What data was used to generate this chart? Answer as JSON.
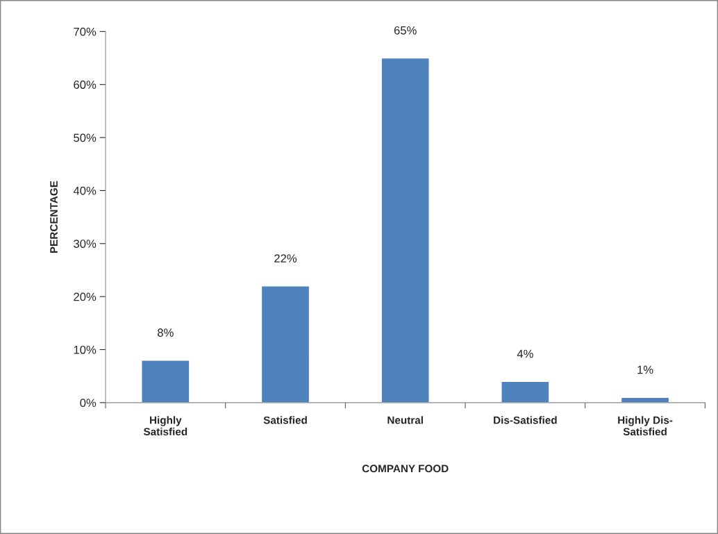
{
  "chart_data": {
    "type": "bar",
    "xlabel": "COMPANY FOOD",
    "ylabel": "PERCENTAGE",
    "categories": [
      "Highly\nSatisfied",
      "Satisfied",
      "Neutral",
      "Dis-Satisfied",
      "Highly Dis-\nSatisfied"
    ],
    "values": [
      8,
      22,
      65,
      4,
      1
    ],
    "value_labels": [
      "8%",
      "22%",
      "65%",
      "4%",
      "1%"
    ],
    "color": "#4f81bd",
    "ylim": [
      0,
      70
    ],
    "yticks": [
      {
        "value": 0,
        "label": "0%"
      },
      {
        "value": 10,
        "label": "10%"
      },
      {
        "value": 20,
        "label": "20%"
      },
      {
        "value": 30,
        "label": "30%"
      },
      {
        "value": 40,
        "label": "40%"
      },
      {
        "value": 50,
        "label": "50%"
      },
      {
        "value": 60,
        "label": "60%"
      },
      {
        "value": 70,
        "label": "70%"
      }
    ],
    "grid": false,
    "legend": false
  }
}
